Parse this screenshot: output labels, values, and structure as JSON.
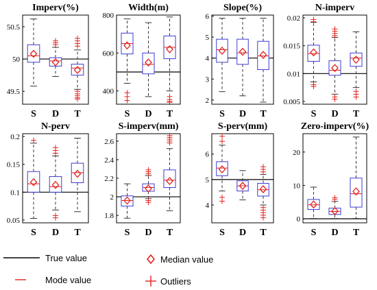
{
  "legend": {
    "true_value": "True value",
    "median_value": "Median value",
    "mode_value": "Mode value",
    "outliers": "Outliers"
  },
  "colors": {
    "box": "#3b3bd6",
    "whisker": "#333333",
    "true_line": "#000000",
    "median_marker": "#e0201c",
    "mode_line": "#e0201c",
    "outlier": "#e0201c"
  },
  "chart_data": [
    {
      "type": "box",
      "title": "Imperv(%)",
      "categories": [
        "S",
        "D",
        "T"
      ],
      "ylim": [
        49.3,
        50.68
      ],
      "yticks": [
        49.5,
        50,
        50.5
      ],
      "ytick_labels": [
        "49.5",
        "50",
        "50.5"
      ],
      "true_value": 50,
      "boxes": [
        {
          "q1": 49.95,
          "q3": 50.22,
          "low": 49.58,
          "high": 50.62,
          "median": 50.08,
          "mode": 50.05,
          "outliers": []
        },
        {
          "q1": 49.89,
          "q3": 50.02,
          "low": 49.73,
          "high": 50.18,
          "median": 49.95,
          "mode": 49.97,
          "outliers": [
            50.22,
            50.25,
            50.28
          ]
        },
        {
          "q1": 49.75,
          "q3": 49.92,
          "low": 49.53,
          "high": 50.14,
          "median": 49.83,
          "mode": 49.86,
          "outliers": [
            50.2,
            50.24,
            50.28,
            50.32,
            49.5,
            49.46,
            49.43,
            49.4,
            49.38
          ]
        }
      ]
    },
    {
      "type": "box",
      "title": "Width(m)",
      "categories": [
        "S",
        "D",
        "T"
      ],
      "ylim": [
        330,
        800
      ],
      "yticks": [
        400,
        600,
        800
      ],
      "ytick_labels": [
        "400",
        "600",
        "800"
      ],
      "true_value": 500,
      "boxes": [
        {
          "q1": 595,
          "q3": 705,
          "low": 440,
          "high": 780,
          "median": 640,
          "mode": 650,
          "outliers": [
            390,
            370,
            350
          ]
        },
        {
          "q1": 490,
          "q3": 600,
          "low": 370,
          "high": 760,
          "median": 550,
          "mode": 540,
          "outliers": []
        },
        {
          "q1": 570,
          "q3": 690,
          "low": 400,
          "high": 790,
          "median": 620,
          "mode": 630,
          "outliers": [
            370,
            355,
            345,
            340
          ]
        }
      ]
    },
    {
      "type": "box",
      "title": "Slope(%)",
      "categories": [
        "S",
        "D",
        "T"
      ],
      "ylim": [
        1.8,
        6.05
      ],
      "yticks": [
        2,
        3,
        4,
        5,
        6
      ],
      "ytick_labels": [
        "2",
        "3",
        "4",
        "5",
        "6"
      ],
      "true_value": 4,
      "boxes": [
        {
          "q1": 3.8,
          "q3": 4.9,
          "low": 2.4,
          "high": 5.9,
          "median": 4.35,
          "mode": 4.4,
          "outliers": []
        },
        {
          "q1": 3.7,
          "q3": 4.9,
          "low": 2.2,
          "high": 5.9,
          "median": 4.3,
          "mode": 4.25,
          "outliers": []
        },
        {
          "q1": 3.45,
          "q3": 4.8,
          "low": 1.9,
          "high": 5.9,
          "median": 4.15,
          "mode": 4.1,
          "outliers": []
        }
      ]
    },
    {
      "type": "box",
      "title": "N-imperv",
      "categories": [
        "S",
        "D",
        "T"
      ],
      "ylim": [
        0.0045,
        0.0205
      ],
      "yticks": [
        0.005,
        0.01,
        0.015,
        0.02
      ],
      "ytick_labels": [
        "0.005",
        "0.01",
        "0.015",
        "0.02"
      ],
      "true_value": 0.01,
      "boxes": [
        {
          "q1": 0.0122,
          "q3": 0.0151,
          "low": 0.0085,
          "high": 0.0192,
          "median": 0.0138,
          "mode": 0.0136,
          "outliers": [
            0.0197,
            0.0193,
            0.008,
            0.0077
          ]
        },
        {
          "q1": 0.0097,
          "q3": 0.0123,
          "low": 0.0063,
          "high": 0.0165,
          "median": 0.011,
          "mode": 0.0106,
          "outliers": [
            0.018,
            0.0176,
            0.0172,
            0.0168,
            0.0058,
            0.0054
          ]
        },
        {
          "q1": 0.0113,
          "q3": 0.0137,
          "low": 0.0075,
          "high": 0.0175,
          "median": 0.0125,
          "mode": 0.0128,
          "outliers": [
            0.0068,
            0.0063,
            0.0058
          ]
        }
      ]
    },
    {
      "type": "box",
      "title": "N-perv",
      "categories": [
        "S",
        "D",
        "T"
      ],
      "ylim": [
        0.045,
        0.205
      ],
      "yticks": [
        0.05,
        0.1,
        0.15,
        0.2
      ],
      "ytick_labels": [
        "0.05",
        "0.1",
        "0.15",
        "0.2"
      ],
      "true_value": 0.1,
      "boxes": [
        {
          "q1": 0.1,
          "q3": 0.137,
          "low": 0.053,
          "high": 0.188,
          "median": 0.118,
          "mode": 0.115,
          "outliers": [
            0.193
          ]
        },
        {
          "q1": 0.1,
          "q3": 0.128,
          "low": 0.068,
          "high": 0.165,
          "median": 0.113,
          "mode": 0.11,
          "outliers": [
            0.17,
            0.175,
            0.18,
            0.058,
            0.054
          ]
        },
        {
          "q1": 0.117,
          "q3": 0.152,
          "low": 0.065,
          "high": 0.197,
          "median": 0.133,
          "mode": 0.135,
          "outliers": []
        }
      ]
    },
    {
      "type": "box",
      "title": "S-imperv(mm)",
      "categories": [
        "S",
        "D",
        "T"
      ],
      "ylim": [
        1.72,
        2.68
      ],
      "yticks": [
        1.8,
        2,
        2.2,
        2.4,
        2.6
      ],
      "ytick_labels": [
        "1.8",
        "2",
        "2.2",
        "2.4",
        "2.6"
      ],
      "true_value": 2,
      "boxes": [
        {
          "q1": 1.9,
          "q3": 2.01,
          "low": 1.77,
          "high": 2.14,
          "median": 1.96,
          "mode": 1.96,
          "outliers": []
        },
        {
          "q1": 2.06,
          "q3": 2.14,
          "low": 1.98,
          "high": 2.23,
          "median": 2.09,
          "mode": 2.1,
          "outliers": [
            2.25,
            2.27,
            2.29,
            1.96,
            1.94
          ]
        },
        {
          "q1": 2.1,
          "q3": 2.29,
          "low": 1.85,
          "high": 2.52,
          "median": 2.17,
          "mode": 2.18,
          "outliers": [
            2.58,
            2.6,
            2.62,
            2.64,
            2.66
          ]
        }
      ]
    },
    {
      "type": "box",
      "title": "S-perv(mm)",
      "categories": [
        "S",
        "D",
        "T"
      ],
      "ylim": [
        3.3,
        6.8
      ],
      "yticks": [
        4,
        5,
        6
      ],
      "ytick_labels": [
        "4",
        "5",
        "6"
      ],
      "true_value": 5,
      "boxes": [
        {
          "q1": 5.15,
          "q3": 5.7,
          "low": 4.55,
          "high": 6.35,
          "median": 5.4,
          "mode": 5.45,
          "outliers": [
            6.5,
            6.7,
            4.3,
            4.15
          ]
        },
        {
          "q1": 4.55,
          "q3": 4.95,
          "low": 4.2,
          "high": 5.35,
          "median": 4.75,
          "mode": 4.75,
          "outliers": []
        },
        {
          "q1": 4.35,
          "q3": 4.85,
          "low": 4.0,
          "high": 5.2,
          "median": 4.62,
          "mode": 4.6,
          "outliers": [
            5.3,
            5.4,
            5.5,
            3.9,
            3.8,
            3.7,
            3.6,
            3.5
          ]
        }
      ]
    },
    {
      "type": "box",
      "title": "Zero-imperv(%)",
      "categories": [
        "S",
        "D",
        "T"
      ],
      "ylim": [
        -1.2,
        25.5
      ],
      "yticks": [
        0,
        10,
        20
      ],
      "ytick_labels": [
        "0",
        "10",
        "20"
      ],
      "true_value": 0,
      "boxes": [
        {
          "q1": 2.8,
          "q3": 5.8,
          "low": 0.1,
          "high": 9.5,
          "median": 4.3,
          "mode": 4.2,
          "outliers": []
        },
        {
          "q1": 1.3,
          "q3": 3.2,
          "low": 0.1,
          "high": 5.2,
          "median": 2.3,
          "mode": 2.2,
          "outliers": [
            5.8,
            6.3
          ]
        },
        {
          "q1": 3.5,
          "q3": 12.2,
          "low": 0.1,
          "high": 24.5,
          "median": 8.2,
          "mode": 7.5,
          "outliers": []
        }
      ]
    }
  ]
}
